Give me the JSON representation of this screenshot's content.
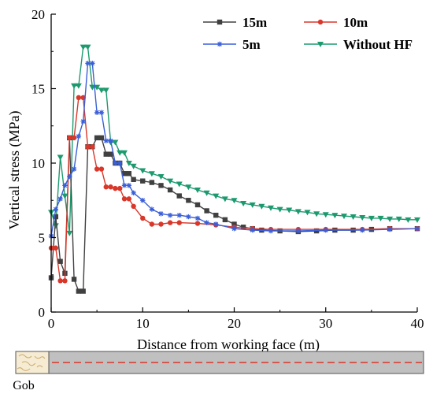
{
  "chart_data": {
    "type": "line",
    "xlabel": "Distance from working face (m)",
    "ylabel": "Vertical stress (MPa)",
    "xlim": [
      0,
      40
    ],
    "ylim": [
      0,
      20
    ],
    "xticks": [
      "0",
      "10",
      "20",
      "30",
      "40"
    ],
    "yticks": [
      "0",
      "5",
      "10",
      "15",
      "20"
    ],
    "grid": false,
    "legend_position": "top-right",
    "series": [
      {
        "name": "15m",
        "color": "#404040",
        "marker": "square",
        "x": [
          0,
          0.5,
          1,
          1.5,
          2,
          2.5,
          3,
          3.5,
          4,
          4.5,
          5,
          5.5,
          6,
          6.5,
          7,
          7.5,
          8,
          8.5,
          9,
          10,
          11,
          12,
          13,
          14,
          15,
          16,
          17,
          18,
          19,
          20,
          21,
          22,
          23,
          25,
          27,
          29,
          31,
          33,
          35,
          37,
          40
        ],
        "y": [
          2.3,
          6.4,
          3.4,
          2.6,
          11.7,
          2.2,
          1.4,
          1.4,
          11.1,
          11.1,
          11.7,
          11.7,
          10.6,
          10.6,
          10.0,
          10.0,
          9.3,
          9.3,
          8.9,
          8.8,
          8.7,
          8.5,
          8.2,
          7.8,
          7.5,
          7.2,
          6.8,
          6.5,
          6.2,
          5.9,
          5.7,
          5.6,
          5.5,
          5.45,
          5.4,
          5.45,
          5.5,
          5.5,
          5.55,
          5.6,
          5.6
        ]
      },
      {
        "name": "10m",
        "color": "#d9372a",
        "marker": "circle",
        "x": [
          0,
          0.5,
          1,
          1.5,
          2,
          2.5,
          3,
          3.5,
          4,
          4.5,
          5,
          5.5,
          6,
          6.5,
          7,
          7.5,
          8,
          8.5,
          9,
          10,
          11,
          12,
          13,
          14,
          16,
          18,
          20,
          22,
          24,
          27,
          30,
          34,
          37,
          40
        ],
        "y": [
          4.3,
          4.3,
          2.1,
          2.1,
          11.7,
          11.7,
          14.4,
          14.4,
          11.1,
          11.1,
          9.6,
          9.6,
          8.4,
          8.4,
          8.3,
          8.3,
          7.6,
          7.6,
          7.1,
          6.3,
          5.9,
          5.9,
          6.0,
          6.0,
          5.95,
          5.85,
          5.7,
          5.6,
          5.55,
          5.55,
          5.55,
          5.55,
          5.6,
          5.6
        ]
      },
      {
        "name": "5m",
        "color": "#3a5fd9",
        "marker": "asterisk",
        "x": [
          0,
          0.5,
          1,
          1.5,
          2,
          2.5,
          3,
          3.5,
          4,
          4.5,
          5,
          5.5,
          6,
          6.5,
          7,
          7.5,
          8,
          8.5,
          9,
          10,
          11,
          12,
          13,
          14,
          15,
          16,
          17,
          18,
          20,
          22,
          24,
          27,
          30,
          34,
          37,
          40
        ],
        "y": [
          5.1,
          6.9,
          7.6,
          8.5,
          9.1,
          9.6,
          11.8,
          12.8,
          16.7,
          16.7,
          13.4,
          13.4,
          11.5,
          11.5,
          10.0,
          10.0,
          8.5,
          8.5,
          8.0,
          7.5,
          6.9,
          6.6,
          6.5,
          6.5,
          6.4,
          6.3,
          6.0,
          5.9,
          5.6,
          5.5,
          5.45,
          5.45,
          5.5,
          5.5,
          5.55,
          5.6
        ]
      },
      {
        "name": "Without HF",
        "color": "#1c9a6e",
        "marker": "triangle-down",
        "x": [
          0,
          0.5,
          1,
          1.5,
          2,
          2.5,
          3,
          3.5,
          4,
          4.5,
          5,
          5.5,
          6,
          6.5,
          7,
          7.5,
          8,
          8.5,
          9,
          10,
          11,
          12,
          13,
          14,
          15,
          16,
          17,
          18,
          19,
          20,
          21,
          22,
          23,
          24,
          25,
          26,
          27,
          28,
          29,
          30,
          31,
          32,
          33,
          34,
          35,
          36,
          37,
          38,
          39,
          40
        ],
        "y": [
          6.7,
          5.8,
          10.4,
          7.8,
          5.3,
          15.2,
          15.2,
          17.8,
          17.8,
          15.1,
          15.1,
          14.9,
          14.9,
          11.4,
          11.4,
          10.7,
          10.7,
          10.0,
          9.8,
          9.5,
          9.3,
          9.1,
          8.8,
          8.6,
          8.4,
          8.2,
          8.0,
          7.8,
          7.6,
          7.5,
          7.3,
          7.2,
          7.1,
          7.0,
          6.9,
          6.85,
          6.75,
          6.7,
          6.6,
          6.55,
          6.5,
          6.45,
          6.4,
          6.35,
          6.3,
          6.3,
          6.25,
          6.25,
          6.2,
          6.2
        ]
      }
    ],
    "annotations": [
      "Gob"
    ]
  },
  "colors": {
    "axis": "#000000",
    "strip_fill": "#c0c0c0",
    "strip_dash": "#d9372a",
    "gob_fill": "#f6ecd3",
    "gob_line": "#c9a96a"
  }
}
